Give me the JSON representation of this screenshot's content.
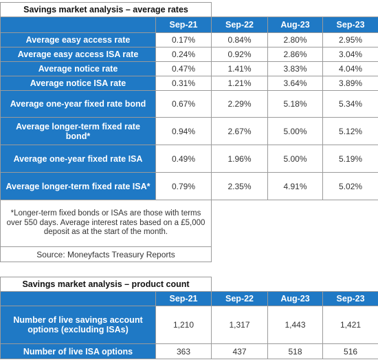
{
  "rates_table": {
    "title": "Savings market analysis – average rates",
    "columns": [
      "Sep-21",
      "Sep-22",
      "Aug-23",
      "Sep-23"
    ],
    "rows": [
      {
        "label": "Average easy access rate",
        "values": [
          "0.17%",
          "0.84%",
          "2.80%",
          "2.95%"
        ]
      },
      {
        "label": "Average easy access ISA rate",
        "values": [
          "0.24%",
          "0.92%",
          "2.86%",
          "3.04%"
        ]
      },
      {
        "label": "Average notice rate",
        "values": [
          "0.47%",
          "1.41%",
          "3.83%",
          "4.04%"
        ]
      },
      {
        "label": "Average notice ISA rate",
        "values": [
          "0.31%",
          "1.21%",
          "3.64%",
          "3.89%"
        ]
      },
      {
        "label": "Average one-year fixed rate bond",
        "values": [
          "0.67%",
          "2.29%",
          "5.18%",
          "5.34%"
        ]
      },
      {
        "label": "Average longer-term fixed rate bond*",
        "values": [
          "0.94%",
          "2.67%",
          "5.00%",
          "5.12%"
        ]
      },
      {
        "label": "Average one-year fixed rate ISA",
        "values": [
          "0.49%",
          "1.96%",
          "5.00%",
          "5.19%"
        ]
      },
      {
        "label": "Average longer-term fixed rate ISA*",
        "values": [
          "0.79%",
          "2.35%",
          "4.91%",
          "5.02%"
        ]
      }
    ],
    "footnote": "*Longer-term fixed bonds or ISAs are those with terms over 550 days. Average interest rates based on a £5,000 deposit as at the start of the month.",
    "source": "Source: Moneyfacts Treasury Reports"
  },
  "count_table": {
    "title": "Savings market analysis – product count",
    "columns": [
      "Sep-21",
      "Sep-22",
      "Aug-23",
      "Sep-23"
    ],
    "rows": [
      {
        "label": "Number of live savings account options (excluding ISAs)",
        "values": [
          "1,210",
          "1,317",
          "1,443",
          "1,421"
        ]
      },
      {
        "label": "Number of live ISA options",
        "values": [
          "363",
          "437",
          "518",
          "516"
        ]
      }
    ]
  },
  "colors": {
    "header_bg": "#1f79c5",
    "header_text": "#ffffff",
    "border": "#9a9a9a"
  }
}
